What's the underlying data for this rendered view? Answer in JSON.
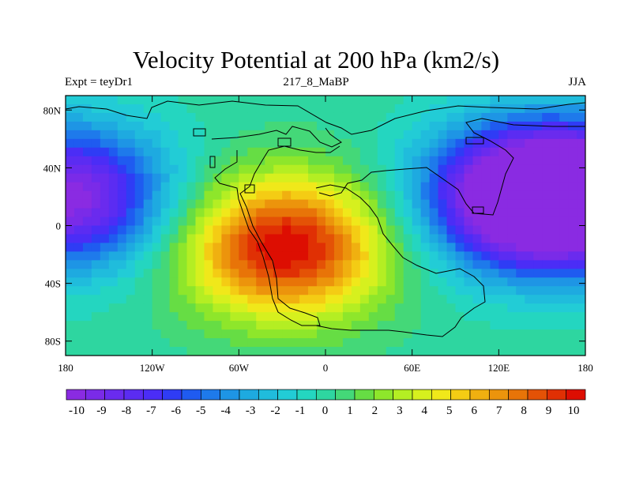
{
  "title": "Velocity Potential at 200 hPa (km2/s)",
  "subtitle_left": "Expt = teyDr1",
  "subtitle_center": "217_8_MaBP",
  "subtitle_right": "JJA",
  "chart_data": {
    "type": "heatmap",
    "title": "Velocity Potential at 200 hPa (km2/s)",
    "x_range": [
      -180,
      180
    ],
    "y_range": [
      -90,
      90
    ],
    "x_ticks": [
      {
        "value": -180,
        "label": "180"
      },
      {
        "value": -120,
        "label": "120W"
      },
      {
        "value": -60,
        "label": "60W"
      },
      {
        "value": 0,
        "label": "0"
      },
      {
        "value": 60,
        "label": "60E"
      },
      {
        "value": 120,
        "label": "120E"
      },
      {
        "value": 180,
        "label": "180"
      }
    ],
    "y_ticks": [
      {
        "value": 80,
        "label": "80N"
      },
      {
        "value": 40,
        "label": "40N"
      },
      {
        "value": 0,
        "label": "0"
      },
      {
        "value": -40,
        "label": "40S"
      },
      {
        "value": -80,
        "label": "80S"
      }
    ],
    "colorbar": {
      "min": -11,
      "max": 11,
      "labels": [
        "-10",
        "-9",
        "-8",
        "-7",
        "-6",
        "-5",
        "-4",
        "-3",
        "-2",
        "-1",
        "0",
        "1",
        "2",
        "3",
        "4",
        "5",
        "6",
        "7",
        "8",
        "9",
        "10"
      ],
      "colors": [
        "#8A2BE2",
        "#7A2BE8",
        "#6A2BEE",
        "#5B2CF2",
        "#4B2DF6",
        "#2F3CF5",
        "#1F5BF0",
        "#1E7AEB",
        "#1E95E5",
        "#1EAAE0",
        "#20BCDC",
        "#22CCD6",
        "#24D6C0",
        "#2ED6A0",
        "#44D878",
        "#66DD44",
        "#8EE62B",
        "#B4EE23",
        "#D6F01E",
        "#F0E81A",
        "#F4CC14",
        "#F0B010",
        "#EC940C",
        "#E87408",
        "#E45206",
        "#E03004",
        "#DD0E02"
      ]
    },
    "anomaly_centers": [
      {
        "name": "central-max",
        "lon": -28,
        "lat": -15,
        "value": 10
      },
      {
        "name": "east-min",
        "lon": 135,
        "lat": 20,
        "value": -10
      },
      {
        "name": "west-min",
        "lon": -180,
        "lat": 20,
        "value": -10
      },
      {
        "name": "west-min-wrap",
        "lon": 180,
        "lat": 20,
        "value": -10
      }
    ]
  }
}
